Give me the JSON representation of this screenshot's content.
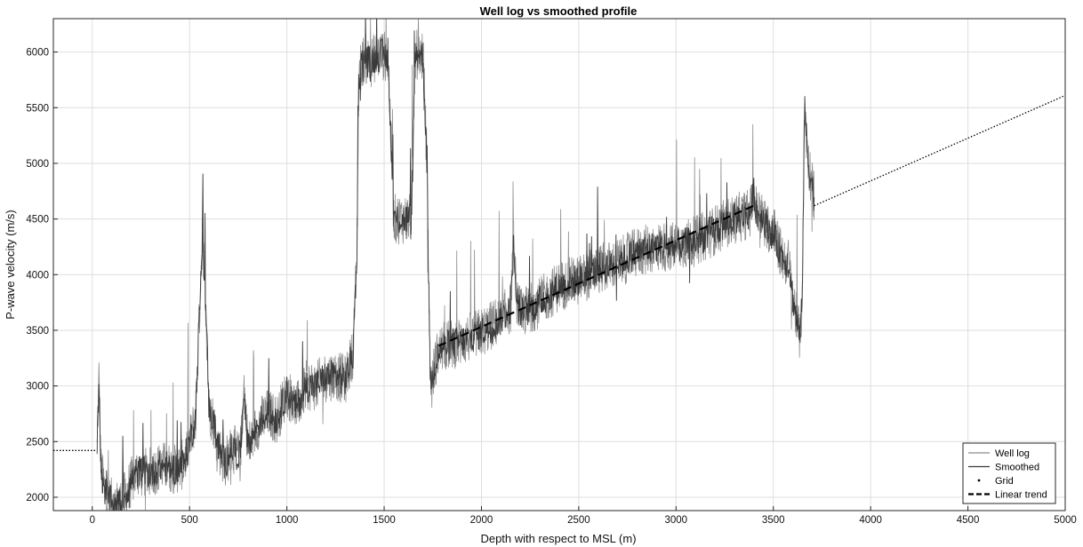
{
  "chart_data": {
    "type": "line",
    "title": "Well log vs smoothed profile",
    "xlabel": "Depth with respect to MSL (m)",
    "ylabel": "P-wave velocity (m/s)",
    "xlim": [
      -200,
      5000
    ],
    "ylim": [
      1880,
      6300
    ],
    "x_ticks": [
      0,
      500,
      1000,
      1500,
      2000,
      2500,
      3000,
      3500,
      4000,
      4500,
      5000
    ],
    "y_ticks": [
      2000,
      2500,
      3000,
      3500,
      4000,
      4500,
      5000,
      5500,
      6000
    ],
    "grid": true,
    "legend_position": "bottom-right",
    "series": [
      {
        "name": "Well log",
        "color": "#8c8c8c",
        "style": "noisy-solid",
        "x": [
          25,
          30,
          35,
          45,
          60,
          80,
          110,
          150,
          190,
          230,
          270,
          310,
          350,
          390,
          430,
          470,
          500,
          530,
          550,
          565,
          580,
          600,
          620,
          650,
          680,
          720,
          760,
          780,
          800,
          850,
          900,
          950,
          1000,
          1050,
          1100,
          1150,
          1200,
          1250,
          1300,
          1340,
          1360,
          1370,
          1385,
          1400,
          1430,
          1450,
          1480,
          1520,
          1550,
          1570,
          1600,
          1640,
          1660,
          1680,
          1700,
          1720,
          1735,
          1745,
          1760,
          1780,
          1800,
          1900,
          2000,
          2100,
          2150,
          2165,
          2180,
          2200,
          2300,
          2400,
          2500,
          2600,
          2700,
          2800,
          2900,
          3000,
          3100,
          3200,
          3300,
          3380,
          3400,
          3410,
          3420,
          3450,
          3500,
          3550,
          3580,
          3600,
          3620,
          3640,
          3650,
          3660,
          3680,
          3700,
          3710
        ],
        "y": [
          2420,
          2800,
          3100,
          2250,
          2100,
          1980,
          1930,
          1950,
          2100,
          2230,
          2220,
          2230,
          2280,
          2270,
          2250,
          2300,
          2500,
          2700,
          3600,
          4300,
          3900,
          2800,
          2700,
          2450,
          2300,
          2450,
          2350,
          3000,
          2450,
          2650,
          2750,
          2700,
          2950,
          2800,
          3000,
          3000,
          3080,
          3100,
          3050,
          3300,
          4200,
          5800,
          5900,
          5950,
          5900,
          5950,
          5980,
          5950,
          4500,
          4500,
          4500,
          4500,
          5950,
          6000,
          5950,
          5000,
          3200,
          3000,
          3200,
          3300,
          3350,
          3400,
          3480,
          3600,
          3700,
          4300,
          3800,
          3650,
          3750,
          3900,
          3950,
          4050,
          4100,
          4200,
          4250,
          4250,
          4300,
          4400,
          4500,
          4550,
          4750,
          4600,
          4550,
          4500,
          4350,
          4150,
          4100,
          3800,
          3600,
          3400,
          4000,
          5500,
          5000,
          4800,
          4700
        ]
      },
      {
        "name": "Smoothed",
        "color": "#3a3a3a",
        "style": "solid"
      },
      {
        "name": "Grid",
        "color": "#000000",
        "style": "dotted",
        "x": [
          -200,
          25,
          3710,
          5000
        ],
        "y": [
          2420,
          2420,
          4620,
          5610
        ]
      },
      {
        "name": "Linear trend",
        "color": "#000000",
        "style": "dashed",
        "x": [
          1780,
          3400
        ],
        "y": [
          3360,
          4620
        ]
      }
    ]
  }
}
